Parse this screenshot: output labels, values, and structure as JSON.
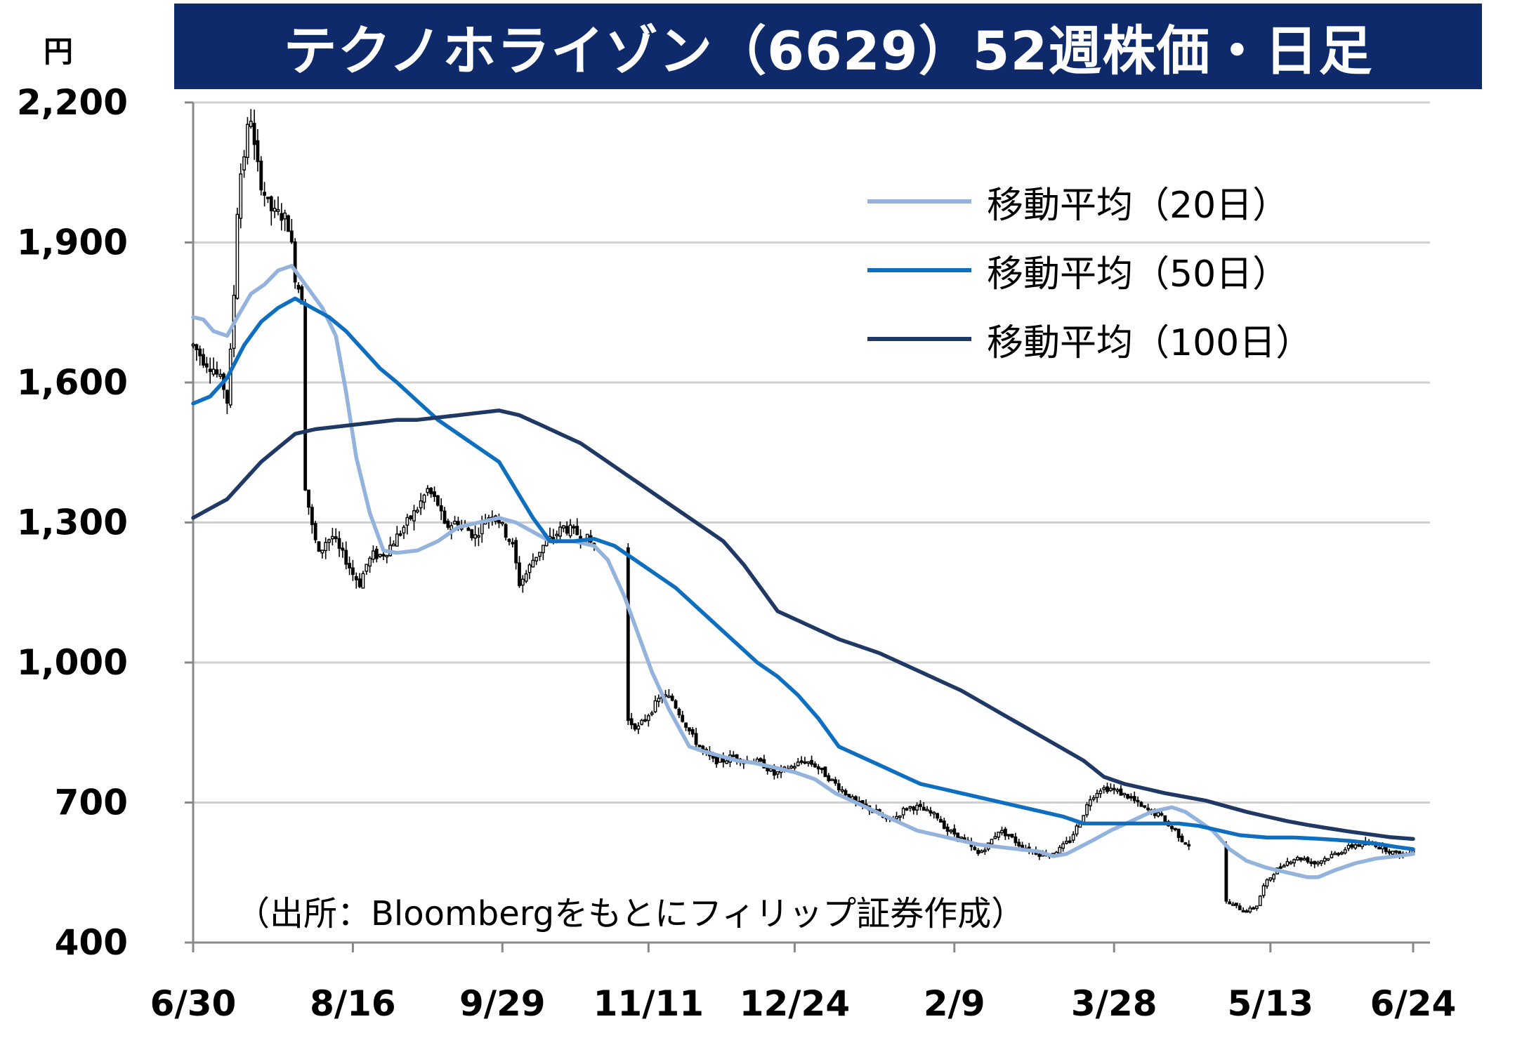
{
  "title": "テクノホライゾン（6629）52週株価・日足",
  "source": "（出所：Bloombergをもとにフィリップ証券作成）",
  "colors": {
    "title_bg": "#0e2a6b",
    "ma20": "#94b3dc",
    "ma50": "#0e6fc0",
    "ma100": "#1f3864",
    "candle": "#000000",
    "grid": "#d0d0d0"
  },
  "chart_data": {
    "type": "candlestick",
    "y_unit": "円",
    "y_ticks": [
      "2,200",
      "1,900",
      "1,600",
      "1,300",
      "1,000",
      "700",
      "400"
    ],
    "y_tick_values": [
      2200,
      1900,
      1600,
      1300,
      1000,
      700,
      400
    ],
    "ylim": [
      400,
      2200
    ],
    "x_ticks": [
      "6/30",
      "8/16",
      "9/29",
      "11/11",
      "12/24",
      "2/9",
      "3/28",
      "5/13",
      "6/24"
    ],
    "x_tick_days": [
      0,
      47,
      91,
      134,
      177,
      224,
      271,
      317,
      359
    ],
    "xlim": [
      0,
      359
    ],
    "grid": true,
    "legend_position": "top-right",
    "legend": [
      {
        "name": "移動平均（20日）",
        "color": "#94b3dc"
      },
      {
        "name": "移動平均（50日）",
        "color": "#0e6fc0"
      },
      {
        "name": "移動平均（100日）",
        "color": "#1f3864"
      }
    ],
    "price_path": [
      [
        0,
        1680
      ],
      [
        3,
        1650
      ],
      [
        6,
        1630
      ],
      [
        9,
        1590
      ],
      [
        10,
        1560
      ],
      [
        11,
        1660
      ],
      [
        12,
        1790
      ],
      [
        13,
        1970
      ],
      [
        14,
        2050
      ],
      [
        15,
        2090
      ],
      [
        16,
        2140
      ],
      [
        17,
        2170
      ],
      [
        18,
        2100
      ],
      [
        19,
        2060
      ],
      [
        20,
        2030
      ],
      [
        22,
        1980
      ],
      [
        24,
        1960
      ],
      [
        26,
        1960
      ],
      [
        28,
        1940
      ],
      [
        29,
        1890
      ],
      [
        30,
        1830
      ],
      [
        32,
        1780
      ],
      [
        33,
        1380
      ],
      [
        35,
        1290
      ],
      [
        37,
        1230
      ],
      [
        39,
        1260
      ],
      [
        41,
        1270
      ],
      [
        43,
        1240
      ],
      [
        45,
        1220
      ],
      [
        47,
        1190
      ],
      [
        49,
        1170
      ],
      [
        51,
        1210
      ],
      [
        53,
        1230
      ],
      [
        55,
        1230
      ],
      [
        57,
        1240
      ],
      [
        60,
        1270
      ],
      [
        63,
        1300
      ],
      [
        66,
        1330
      ],
      [
        69,
        1370
      ],
      [
        72,
        1340
      ],
      [
        74,
        1290
      ],
      [
        77,
        1300
      ],
      [
        80,
        1290
      ],
      [
        83,
        1270
      ],
      [
        86,
        1310
      ],
      [
        89,
        1320
      ],
      [
        91,
        1290
      ],
      [
        94,
        1250
      ],
      [
        96,
        1170
      ],
      [
        98,
        1190
      ],
      [
        100,
        1220
      ],
      [
        103,
        1250
      ],
      [
        106,
        1270
      ],
      [
        109,
        1290
      ],
      [
        112,
        1280
      ],
      [
        115,
        1270
      ],
      [
        118,
        1250
      ],
      [
        127,
        880
      ],
      [
        131,
        860
      ],
      [
        135,
        900
      ],
      [
        138,
        930
      ],
      [
        141,
        920
      ],
      [
        144,
        880
      ],
      [
        147,
        840
      ],
      [
        150,
        810
      ],
      [
        153,
        790
      ],
      [
        156,
        790
      ],
      [
        159,
        800
      ],
      [
        162,
        790
      ],
      [
        165,
        790
      ],
      [
        168,
        780
      ],
      [
        171,
        760
      ],
      [
        174,
        770
      ],
      [
        177,
        780
      ],
      [
        180,
        790
      ],
      [
        183,
        780
      ],
      [
        186,
        760
      ],
      [
        189,
        740
      ],
      [
        192,
        720
      ],
      [
        195,
        700
      ],
      [
        198,
        690
      ],
      [
        201,
        680
      ],
      [
        204,
        660
      ],
      [
        207,
        670
      ],
      [
        210,
        690
      ],
      [
        213,
        690
      ],
      [
        216,
        680
      ],
      [
        219,
        670
      ],
      [
        222,
        640
      ],
      [
        225,
        630
      ],
      [
        228,
        610
      ],
      [
        231,
        590
      ],
      [
        234,
        610
      ],
      [
        237,
        640
      ],
      [
        240,
        630
      ],
      [
        243,
        610
      ],
      [
        246,
        600
      ],
      [
        249,
        590
      ],
      [
        252,
        590
      ],
      [
        255,
        600
      ],
      [
        258,
        620
      ],
      [
        261,
        660
      ],
      [
        264,
        710
      ],
      [
        267,
        730
      ],
      [
        270,
        730
      ],
      [
        273,
        720
      ],
      [
        276,
        710
      ],
      [
        279,
        690
      ],
      [
        282,
        680
      ],
      [
        285,
        670
      ],
      [
        287,
        650
      ],
      [
        289,
        640
      ],
      [
        291,
        620
      ],
      [
        293,
        610
      ],
      [
        303,
        490
      ],
      [
        306,
        480
      ],
      [
        309,
        470
      ],
      [
        311,
        470
      ],
      [
        313,
        480
      ],
      [
        315,
        520
      ],
      [
        318,
        550
      ],
      [
        321,
        570
      ],
      [
        324,
        580
      ],
      [
        327,
        580
      ],
      [
        330,
        570
      ],
      [
        333,
        580
      ],
      [
        336,
        590
      ],
      [
        339,
        600
      ],
      [
        342,
        610
      ],
      [
        345,
        610
      ],
      [
        348,
        610
      ],
      [
        351,
        600
      ],
      [
        354,
        590
      ],
      [
        357,
        590
      ],
      [
        359,
        600
      ]
    ],
    "series": [
      {
        "name": "移動平均（20日）",
        "points": [
          [
            0,
            1740
          ],
          [
            3,
            1735
          ],
          [
            6,
            1710
          ],
          [
            10,
            1700
          ],
          [
            13,
            1740
          ],
          [
            17,
            1790
          ],
          [
            21,
            1810
          ],
          [
            25,
            1840
          ],
          [
            29,
            1850
          ],
          [
            33,
            1810
          ],
          [
            38,
            1760
          ],
          [
            42,
            1700
          ],
          [
            45,
            1580
          ],
          [
            48,
            1440
          ],
          [
            52,
            1320
          ],
          [
            56,
            1240
          ],
          [
            60,
            1235
          ],
          [
            66,
            1240
          ],
          [
            72,
            1260
          ],
          [
            78,
            1290
          ],
          [
            84,
            1300
          ],
          [
            90,
            1310
          ],
          [
            95,
            1300
          ],
          [
            100,
            1280
          ],
          [
            105,
            1260
          ],
          [
            112,
            1260
          ],
          [
            118,
            1250
          ],
          [
            122,
            1220
          ],
          [
            127,
            1140
          ],
          [
            131,
            1060
          ],
          [
            135,
            980
          ],
          [
            140,
            900
          ],
          [
            146,
            820
          ],
          [
            150,
            810
          ],
          [
            155,
            800
          ],
          [
            160,
            790
          ],
          [
            165,
            785
          ],
          [
            171,
            775
          ],
          [
            177,
            765
          ],
          [
            183,
            750
          ],
          [
            189,
            720
          ],
          [
            195,
            700
          ],
          [
            201,
            680
          ],
          [
            207,
            660
          ],
          [
            213,
            640
          ],
          [
            219,
            630
          ],
          [
            225,
            620
          ],
          [
            231,
            610
          ],
          [
            237,
            605
          ],
          [
            243,
            600
          ],
          [
            249,
            595
          ],
          [
            253,
            585
          ],
          [
            257,
            590
          ],
          [
            261,
            605
          ],
          [
            265,
            620
          ],
          [
            270,
            640
          ],
          [
            276,
            660
          ],
          [
            282,
            680
          ],
          [
            288,
            690
          ],
          [
            292,
            680
          ],
          [
            296,
            660
          ],
          [
            300,
            640
          ],
          [
            305,
            600
          ],
          [
            310,
            575
          ],
          [
            316,
            560
          ],
          [
            322,
            550
          ],
          [
            328,
            540
          ],
          [
            331,
            540
          ],
          [
            336,
            555
          ],
          [
            342,
            570
          ],
          [
            348,
            580
          ],
          [
            354,
            585
          ],
          [
            359,
            590
          ]
        ]
      },
      {
        "name": "移動平均（50日）",
        "points": [
          [
            0,
            1555
          ],
          [
            5,
            1570
          ],
          [
            10,
            1610
          ],
          [
            15,
            1680
          ],
          [
            20,
            1730
          ],
          [
            25,
            1760
          ],
          [
            30,
            1780
          ],
          [
            35,
            1760
          ],
          [
            40,
            1740
          ],
          [
            45,
            1710
          ],
          [
            50,
            1670
          ],
          [
            55,
            1630
          ],
          [
            60,
            1600
          ],
          [
            66,
            1560
          ],
          [
            72,
            1520
          ],
          [
            78,
            1490
          ],
          [
            84,
            1460
          ],
          [
            90,
            1430
          ],
          [
            95,
            1370
          ],
          [
            100,
            1310
          ],
          [
            105,
            1260
          ],
          [
            112,
            1260
          ],
          [
            118,
            1265
          ],
          [
            124,
            1250
          ],
          [
            130,
            1220
          ],
          [
            136,
            1190
          ],
          [
            142,
            1160
          ],
          [
            148,
            1120
          ],
          [
            154,
            1080
          ],
          [
            160,
            1040
          ],
          [
            166,
            1000
          ],
          [
            172,
            970
          ],
          [
            178,
            930
          ],
          [
            184,
            880
          ],
          [
            190,
            820
          ],
          [
            196,
            800
          ],
          [
            202,
            780
          ],
          [
            208,
            760
          ],
          [
            214,
            740
          ],
          [
            220,
            730
          ],
          [
            226,
            720
          ],
          [
            232,
            710
          ],
          [
            238,
            700
          ],
          [
            244,
            690
          ],
          [
            250,
            680
          ],
          [
            256,
            670
          ],
          [
            262,
            655
          ],
          [
            270,
            655
          ],
          [
            280,
            655
          ],
          [
            290,
            655
          ],
          [
            296,
            650
          ],
          [
            302,
            640
          ],
          [
            308,
            630
          ],
          [
            316,
            625
          ],
          [
            324,
            625
          ],
          [
            332,
            622
          ],
          [
            340,
            618
          ],
          [
            348,
            612
          ],
          [
            354,
            605
          ],
          [
            359,
            600
          ]
        ]
      },
      {
        "name": "移動平均（100日）",
        "points": [
          [
            0,
            1310
          ],
          [
            5,
            1330
          ],
          [
            10,
            1350
          ],
          [
            15,
            1390
          ],
          [
            20,
            1430
          ],
          [
            25,
            1460
          ],
          [
            30,
            1490
          ],
          [
            36,
            1500
          ],
          [
            42,
            1505
          ],
          [
            48,
            1510
          ],
          [
            54,
            1515
          ],
          [
            60,
            1520
          ],
          [
            66,
            1520
          ],
          [
            72,
            1525
          ],
          [
            78,
            1530
          ],
          [
            84,
            1535
          ],
          [
            90,
            1540
          ],
          [
            96,
            1530
          ],
          [
            102,
            1510
          ],
          [
            108,
            1490
          ],
          [
            114,
            1470
          ],
          [
            120,
            1440
          ],
          [
            126,
            1410
          ],
          [
            132,
            1380
          ],
          [
            138,
            1350
          ],
          [
            144,
            1320
          ],
          [
            150,
            1290
          ],
          [
            156,
            1260
          ],
          [
            162,
            1210
          ],
          [
            168,
            1150
          ],
          [
            172,
            1110
          ],
          [
            178,
            1090
          ],
          [
            184,
            1070
          ],
          [
            190,
            1050
          ],
          [
            196,
            1035
          ],
          [
            202,
            1020
          ],
          [
            208,
            1000
          ],
          [
            214,
            980
          ],
          [
            220,
            960
          ],
          [
            226,
            940
          ],
          [
            232,
            915
          ],
          [
            238,
            890
          ],
          [
            244,
            865
          ],
          [
            250,
            840
          ],
          [
            256,
            815
          ],
          [
            262,
            790
          ],
          [
            268,
            755
          ],
          [
            274,
            740
          ],
          [
            280,
            730
          ],
          [
            286,
            720
          ],
          [
            292,
            712
          ],
          [
            298,
            704
          ],
          [
            304,
            692
          ],
          [
            310,
            680
          ],
          [
            316,
            670
          ],
          [
            322,
            660
          ],
          [
            328,
            652
          ],
          [
            334,
            645
          ],
          [
            340,
            638
          ],
          [
            346,
            632
          ],
          [
            352,
            626
          ],
          [
            359,
            622
          ]
        ]
      }
    ]
  }
}
